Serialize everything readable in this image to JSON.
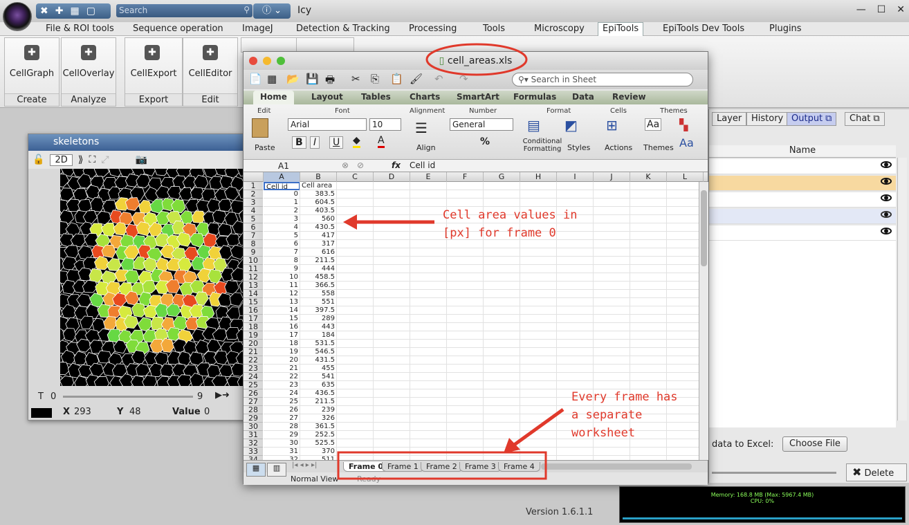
{
  "app": {
    "title": "Icy",
    "search_placeholder": "Search",
    "version": "Version 1.6.1.1"
  },
  "menu": [
    "File & ROI tools",
    "Sequence operation",
    "ImageJ",
    "Detection & Tracking",
    "Processing",
    "Tools",
    "Microscopy",
    "EpiTools",
    "EpiTools Dev Tools",
    "Plugins"
  ],
  "ribbon": [
    {
      "label": "CellGraph",
      "group": "Create"
    },
    {
      "label": "CellOverlay",
      "group": "Analyze"
    },
    {
      "label": "CellExport",
      "group": "Export"
    },
    {
      "label": "CellEditor",
      "group": "Edit"
    }
  ],
  "skeletons": {
    "title": "skeletons",
    "mode": "2D",
    "t_label": "T",
    "t_start": "0",
    "t_end": "9",
    "x_label": "X",
    "x_val": "293",
    "y_label": "Y",
    "y_val": "48",
    "value_label": "Value",
    "value_val": "0"
  },
  "excel": {
    "title": "cell_areas.xls",
    "search_placeholder": "Search in Sheet",
    "tabs": [
      "Home",
      "Layout",
      "Tables",
      "Charts",
      "SmartArt",
      "Formulas",
      "Data",
      "Review"
    ],
    "groups": [
      "Edit",
      "Font",
      "Alignment",
      "Number",
      "Format",
      "Cells",
      "Themes"
    ],
    "paste": "Paste",
    "font": "Arial",
    "size": "10",
    "align": "Align",
    "number_format": "General",
    "conditional": "Conditional Formatting",
    "styles": "Styles",
    "actions": "Actions",
    "themes": "Themes",
    "cell_ref": "A1",
    "fx": "fx",
    "formula": "Cell id",
    "columns": [
      "A",
      "B",
      "C",
      "D",
      "E",
      "F",
      "G",
      "H",
      "I",
      "J",
      "K",
      "L"
    ],
    "header": [
      "Cell id",
      "Cell area"
    ],
    "rows": [
      [
        "0",
        "383.5"
      ],
      [
        "1",
        "604.5"
      ],
      [
        "2",
        "403.5"
      ],
      [
        "3",
        "560"
      ],
      [
        "4",
        "430.5"
      ],
      [
        "5",
        "417"
      ],
      [
        "6",
        "317"
      ],
      [
        "7",
        "616"
      ],
      [
        "8",
        "211.5"
      ],
      [
        "9",
        "444"
      ],
      [
        "10",
        "458.5"
      ],
      [
        "11",
        "366.5"
      ],
      [
        "12",
        "558"
      ],
      [
        "13",
        "551"
      ],
      [
        "14",
        "397.5"
      ],
      [
        "15",
        "289"
      ],
      [
        "16",
        "443"
      ],
      [
        "17",
        "184"
      ],
      [
        "18",
        "531.5"
      ],
      [
        "19",
        "546.5"
      ],
      [
        "20",
        "431.5"
      ],
      [
        "21",
        "455"
      ],
      [
        "22",
        "541"
      ],
      [
        "23",
        "635"
      ],
      [
        "24",
        "436.5"
      ],
      [
        "25",
        "211.5"
      ],
      [
        "26",
        "239"
      ],
      [
        "27",
        "326"
      ],
      [
        "28",
        "361.5"
      ],
      [
        "29",
        "252.5"
      ],
      [
        "30",
        "525.5"
      ],
      [
        "31",
        "370"
      ],
      [
        "32",
        "511"
      ]
    ],
    "sheets": [
      "Frame 0",
      "Frame 1",
      "Frame 2",
      "Frame 3",
      "Frame 4"
    ],
    "status_view": "Normal View",
    "status_ready": "Ready"
  },
  "right": {
    "tabs": [
      "Layer",
      "History",
      "Output",
      "Chat"
    ],
    "name_header": "Name",
    "export_label": "data to Excel:",
    "choose_file": "Choose File",
    "delete": "Delete"
  },
  "memory": {
    "line1": "Memory: 168.8 MB  (Max: 5967.4 MB)",
    "line2": "CPU: 0%"
  },
  "annotations": {
    "a1": "Cell area values in\n[px] for frame 0",
    "a2": "Every frame has\na separate\nworksheet"
  },
  "colors": {
    "anno": "#e0392b",
    "accent": "#3c6094"
  }
}
